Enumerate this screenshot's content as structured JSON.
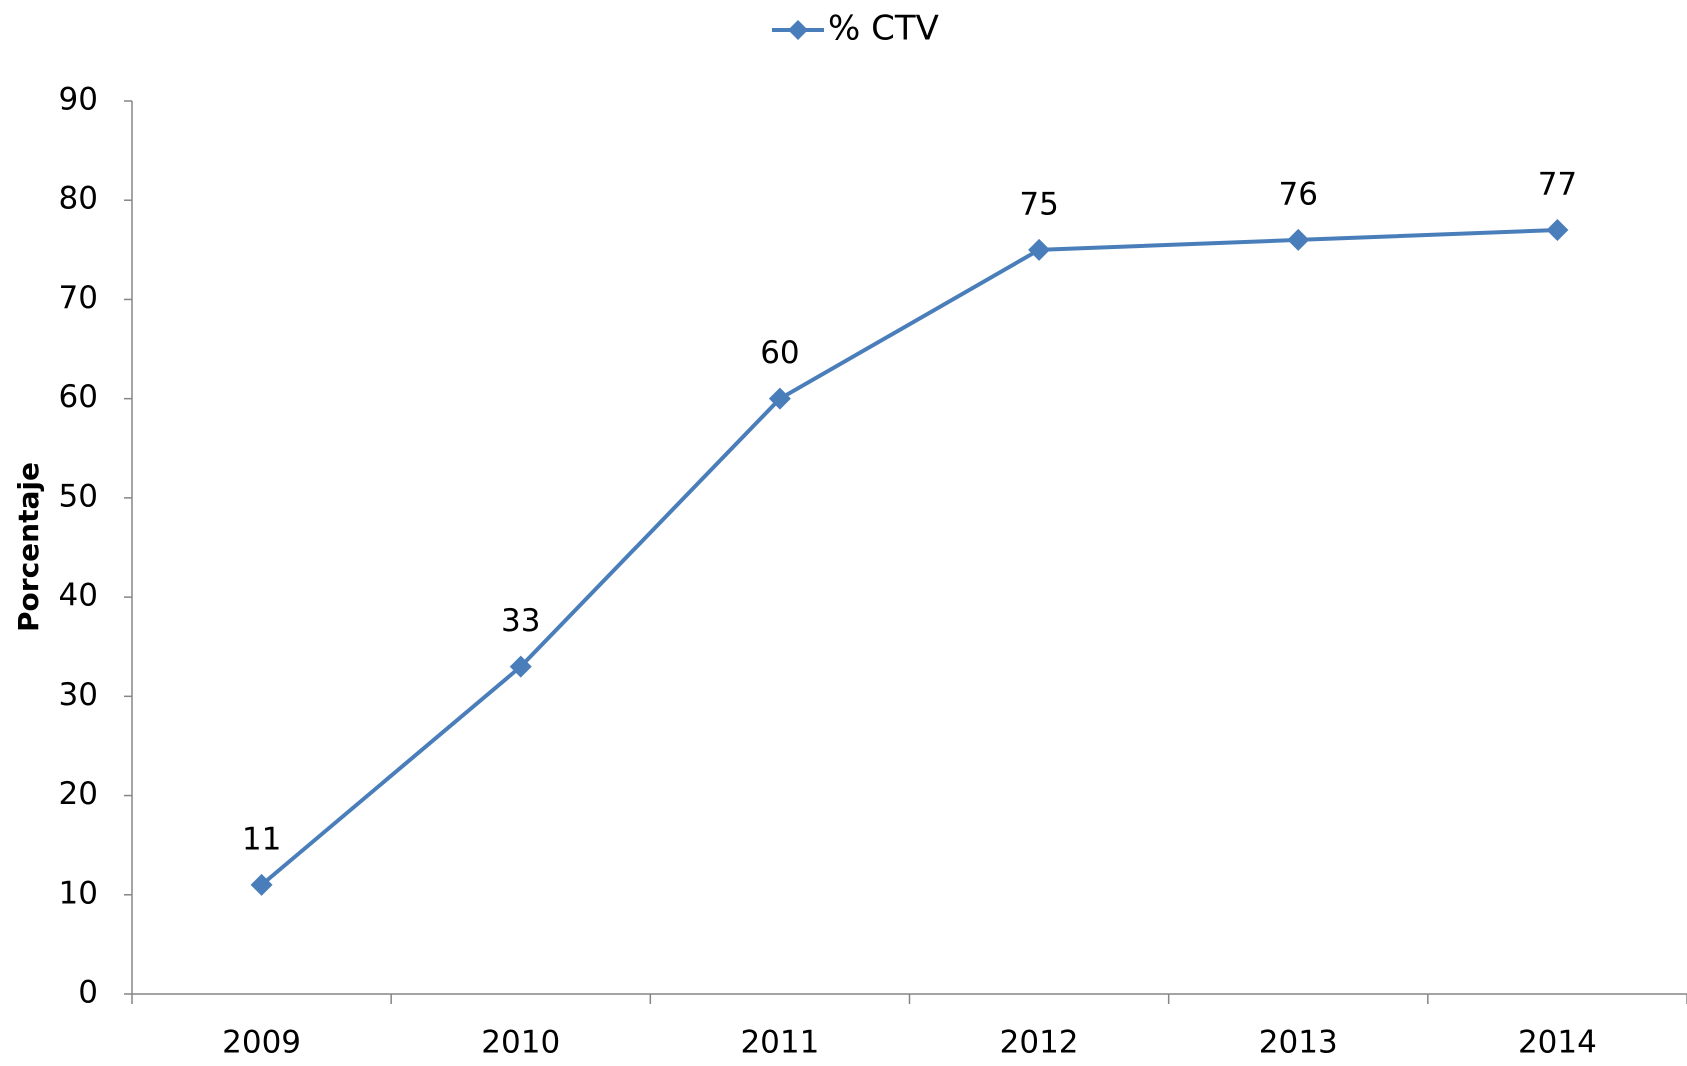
{
  "chart_data": {
    "type": "line",
    "y_label": "Porcentaje",
    "categories": [
      "2009",
      "2010",
      "2011",
      "2012",
      "2013",
      "2014"
    ],
    "series": [
      {
        "name": "% CTV",
        "color": "#4a7ebb",
        "values": [
          11,
          33,
          60,
          75,
          76,
          77
        ]
      }
    ],
    "ylim": [
      0,
      90
    ],
    "yticks": [
      0,
      10,
      20,
      30,
      40,
      50,
      60,
      70,
      80,
      90
    ],
    "legend": "top",
    "grid": false,
    "data_labels": true
  }
}
